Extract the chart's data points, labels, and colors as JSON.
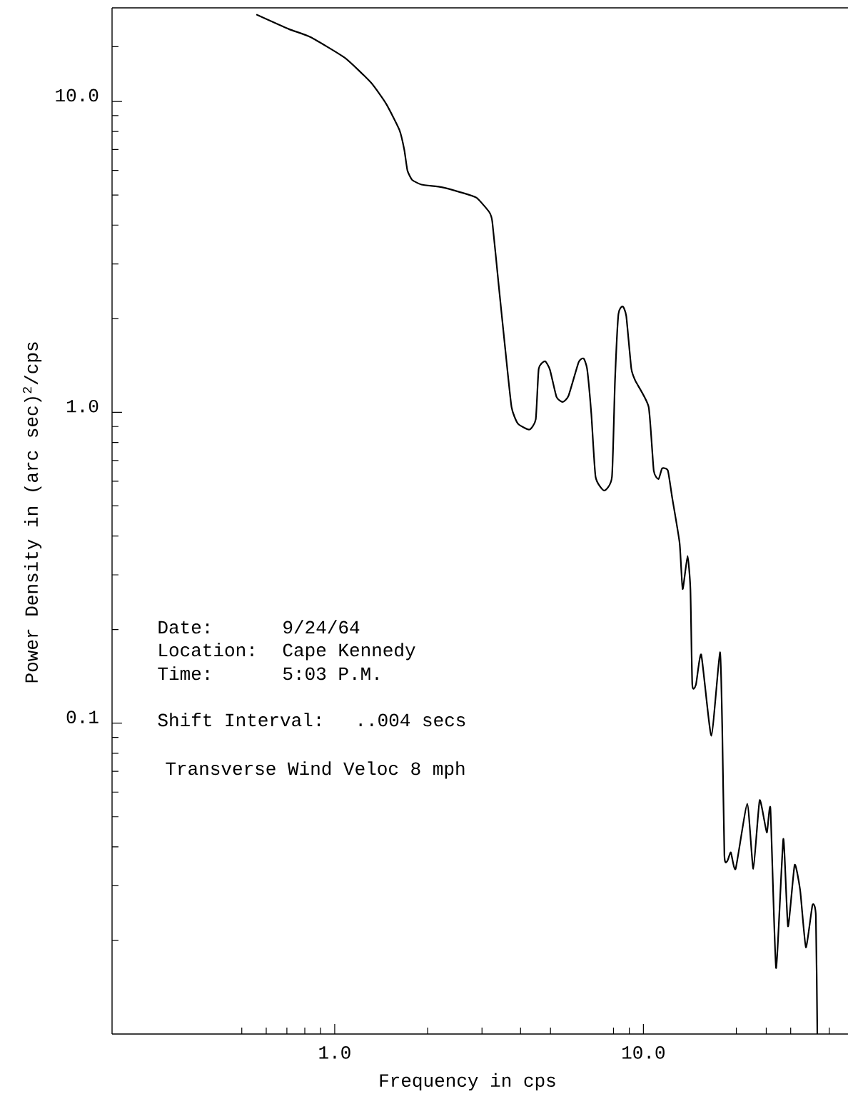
{
  "chart_data": {
    "type": "line",
    "xlabel": "Frequency in cps",
    "ylabel": "Power Density in (arc sec)$^{2}$/cps",
    "annotations": [
      "Date:",
      "9/24/64",
      "Location:",
      "Cape Kennedy",
      "Time:",
      "5:03 P.M.",
      "Shift Interval:",
      "..004 secs",
      "Transverse Wind Veloc 8 mph"
    ],
    "log": "xy",
    "xlim": [
      0.19,
      46
    ],
    "ylim": [
      0.01,
      20
    ],
    "xticks": [
      {
        "value": 0.5,
        "label": null
      },
      {
        "value": 0.6,
        "label": null
      },
      {
        "value": 0.7,
        "label": null
      },
      {
        "value": 0.8,
        "label": null
      },
      {
        "value": 0.9,
        "label": null
      },
      {
        "value": 1,
        "label": "1.0"
      },
      {
        "value": 2,
        "label": null
      },
      {
        "value": 3,
        "label": null
      },
      {
        "value": 4,
        "label": null
      },
      {
        "value": 5,
        "label": null
      },
      {
        "value": 8,
        "label": null
      },
      {
        "value": 9,
        "label": null
      },
      {
        "value": 10,
        "label": "10.0"
      },
      {
        "value": 20,
        "label": null
      },
      {
        "value": 25,
        "label": null
      },
      {
        "value": 30,
        "label": null
      },
      {
        "value": 40,
        "label": null
      }
    ],
    "yticks": [
      {
        "value": 0.02,
        "label": null
      },
      {
        "value": 0.03,
        "label": null
      },
      {
        "value": 0.04,
        "label": null
      },
      {
        "value": 0.05,
        "label": null
      },
      {
        "value": 0.06,
        "label": null
      },
      {
        "value": 0.07,
        "label": null
      },
      {
        "value": 0.08,
        "label": null
      },
      {
        "value": 0.09,
        "label": null
      },
      {
        "value": 0.1,
        "label": "0.1"
      },
      {
        "value": 0.2,
        "label": null
      },
      {
        "value": 0.3,
        "label": null
      },
      {
        "value": 0.4,
        "label": null
      },
      {
        "value": 0.5,
        "label": null
      },
      {
        "value": 0.6,
        "label": null
      },
      {
        "value": 0.7,
        "label": null
      },
      {
        "value": 0.8,
        "label": null
      },
      {
        "value": 0.9,
        "label": null
      },
      {
        "value": 1,
        "label": "1.0"
      },
      {
        "value": 2,
        "label": null
      },
      {
        "value": 3,
        "label": null
      },
      {
        "value": 4,
        "label": null
      },
      {
        "value": 5,
        "label": null
      },
      {
        "value": 6,
        "label": null
      },
      {
        "value": 7,
        "label": null
      },
      {
        "value": 8,
        "label": null
      },
      {
        "value": 9,
        "label": null
      },
      {
        "value": 10,
        "label": "10.0"
      },
      {
        "value": 15,
        "label": null
      }
    ],
    "marker": "none",
    "line_style": "solid",
    "color": "#000000",
    "x": [
      0.56,
      0.71,
      0.835,
      1.08,
      1.31,
      1.47,
      1.62,
      1.68,
      1.72,
      1.78,
      1.91,
      2.22,
      2.56,
      2.88,
      3.17,
      3.24,
      3.4,
      3.57,
      3.74,
      3.92,
      4.27,
      4.48,
      4.58,
      4.8,
      4.98,
      5.23,
      5.48,
      5.72,
      6.17,
      6.4,
      6.57,
      6.78,
      7.0,
      7.46,
      7.91,
      8.09,
      8.3,
      8.57,
      8.8,
      9.14,
      9.43,
      10.4,
      10.8,
      11.2,
      11.5,
      12.0,
      12.4,
      13.1,
      13.4,
      13.9,
      14.2,
      14.4,
      14.8,
      15.4,
      16.6,
      17.7,
      18.0,
      18.3,
      18.7,
      19.2,
      19.9,
      21.7,
      22.7,
      23.8,
      25.1,
      25.8,
      26.9,
      28.4,
      29.4,
      30.9,
      32.2,
      33.6,
      35.3,
      36.2,
      36.6
    ],
    "values": [
      19,
      17.1,
      16.1,
      13.8,
      11.5,
      9.8,
      8.1,
      7.0,
      6.0,
      5.6,
      5.4,
      5.3,
      5.1,
      4.9,
      4.4,
      4.1,
      2.55,
      1.59,
      1.04,
      0.92,
      0.88,
      0.95,
      1.38,
      1.46,
      1.37,
      1.12,
      1.08,
      1.13,
      1.45,
      1.49,
      1.38,
      0.99,
      0.62,
      0.56,
      0.62,
      1.26,
      2.07,
      2.19,
      2.04,
      1.38,
      1.26,
      1.04,
      0.65,
      0.61,
      0.66,
      0.65,
      0.53,
      0.38,
      0.27,
      0.345,
      0.27,
      0.133,
      0.133,
      0.166,
      0.091,
      0.169,
      0.098,
      0.0376,
      0.036,
      0.0384,
      0.034,
      0.055,
      0.034,
      0.0565,
      0.0445,
      0.053,
      0.0163,
      0.0424,
      0.0222,
      0.035,
      0.029,
      0.019,
      0.026,
      0.024,
      0.01
    ]
  }
}
